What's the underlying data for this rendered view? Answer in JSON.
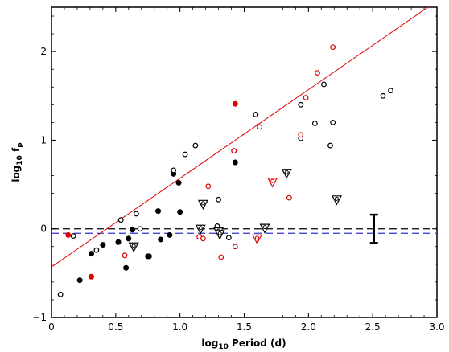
{
  "chart_data": {
    "type": "scatter",
    "title": "",
    "xlabel_main": "log",
    "xlabel_sub": "10",
    "xlabel_rest": " Period (d)",
    "ylabel_main": "log",
    "ylabel_sub": "10",
    "ylabel_rest": " f",
    "ylabel_sub2": "p",
    "xlim": [
      0.0,
      3.0
    ],
    "ylim": [
      -1.0,
      2.5
    ],
    "xticks": [
      0.0,
      0.5,
      1.0,
      1.5,
      2.0,
      2.5,
      3.0
    ],
    "xtick_labels": [
      "0",
      "0.5",
      "1.0",
      "1.5",
      "2.0",
      "2.5",
      "3.0"
    ],
    "yticks": [
      -1,
      0,
      1,
      2
    ],
    "ytick_labels": [
      "−1",
      "0",
      "1",
      "2"
    ],
    "colors": {
      "black": "#000000",
      "red": "#dd0000",
      "blue": "#3333cc"
    },
    "fit_line": {
      "color": "red",
      "x": [
        0.0,
        3.0
      ],
      "y": [
        -0.43,
        2.57
      ]
    },
    "reference_lines": [
      {
        "y": 0.0,
        "color": "black",
        "style": "dashed"
      },
      {
        "y": -0.05,
        "color": "blue",
        "style": "dashed"
      }
    ],
    "error_bar": {
      "x": 2.51,
      "y_low": -0.16,
      "y_high": 0.16
    },
    "series": [
      {
        "marker": "filled-circle",
        "color": "black",
        "x": [
          0.22,
          0.31,
          0.4,
          0.52,
          0.58,
          0.6,
          0.63,
          0.75,
          0.76,
          0.83,
          0.85,
          0.92,
          0.95,
          0.99,
          1.0,
          1.43
        ],
        "y": [
          -0.58,
          -0.28,
          -0.18,
          -0.15,
          -0.44,
          -0.11,
          -0.01,
          -0.31,
          -0.31,
          0.2,
          -0.12,
          -0.07,
          0.62,
          0.52,
          0.19,
          0.75
        ]
      },
      {
        "marker": "filled-circle",
        "color": "red",
        "x": [
          0.13,
          0.31,
          1.43
        ],
        "y": [
          -0.07,
          -0.54,
          1.41
        ]
      },
      {
        "marker": "open-circle",
        "color": "black",
        "x": [
          0.07,
          0.17,
          0.35,
          0.54,
          0.66,
          0.69,
          0.95,
          1.04,
          1.12,
          1.29,
          1.3,
          1.38,
          1.42,
          1.59,
          1.94,
          1.94,
          2.05,
          2.12,
          2.17,
          2.19,
          2.58,
          2.64
        ],
        "y": [
          -0.74,
          -0.08,
          -0.24,
          0.1,
          0.17,
          0.0,
          0.66,
          0.84,
          0.94,
          0.03,
          0.33,
          -0.1,
          0.88,
          1.29,
          1.4,
          1.02,
          1.19,
          1.63,
          0.94,
          1.2,
          1.5,
          1.56
        ]
      },
      {
        "marker": "open-circle",
        "color": "red",
        "x": [
          0.57,
          1.15,
          1.18,
          1.22,
          1.32,
          1.42,
          1.62,
          1.85,
          1.94,
          1.98,
          2.07,
          2.19
        ],
        "y": [
          -0.3,
          -0.09,
          -0.11,
          0.48,
          -0.32,
          0.88,
          1.15,
          0.35,
          1.06,
          1.48,
          1.76,
          2.05
        ]
      },
      {
        "marker": "open-circle",
        "color": "red",
        "x": [
          1.43
        ],
        "y": [
          -0.2
        ]
      },
      {
        "marker": "triangle",
        "color": "black",
        "x": [
          0.64,
          1.16,
          1.18,
          1.3,
          1.31,
          1.66,
          1.83,
          2.22
        ],
        "y": [
          -0.2,
          0.0,
          0.28,
          -0.03,
          -0.06,
          0.01,
          0.63,
          0.33
        ]
      },
      {
        "marker": "triangle",
        "color": "red",
        "x": [
          1.6,
          1.72
        ],
        "y": [
          -0.11,
          0.53
        ]
      }
    ]
  }
}
